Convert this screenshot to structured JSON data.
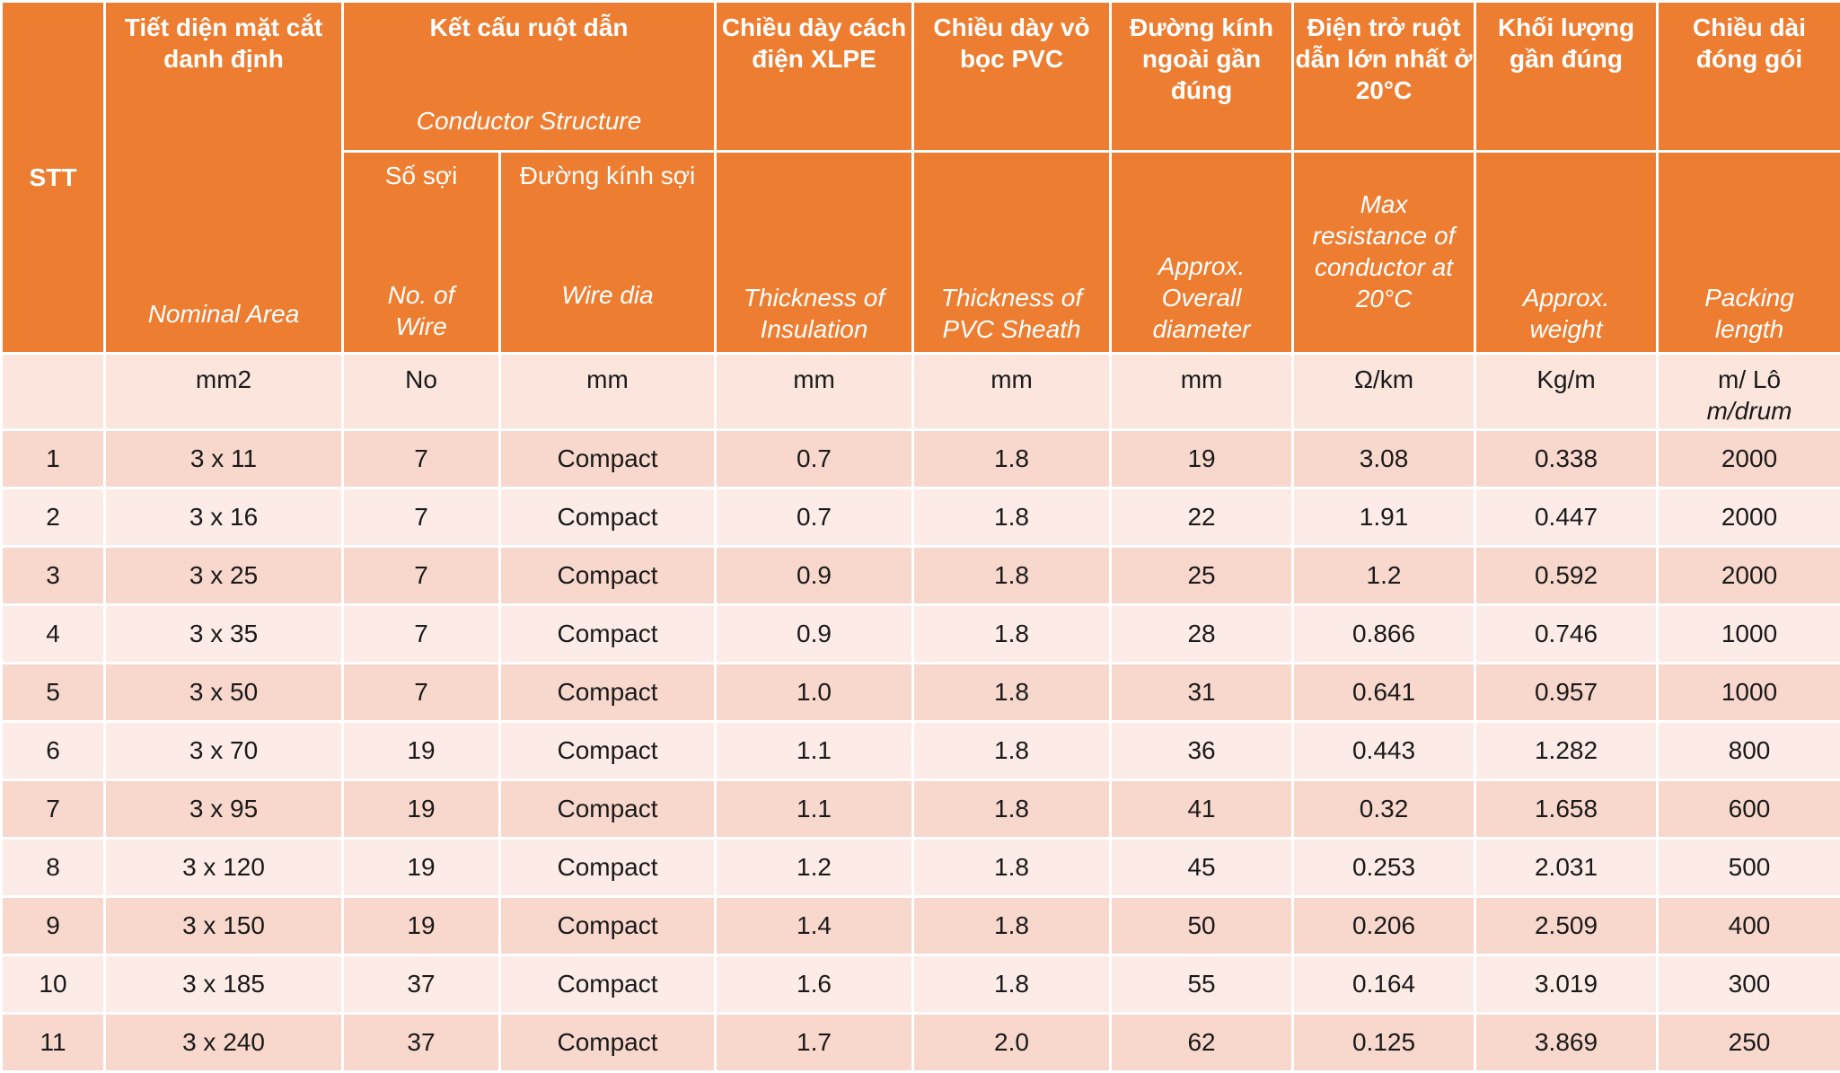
{
  "header": {
    "stt": "STT",
    "nominal_area": {
      "vn": "Tiết diện mặt cắt danh định",
      "en": "Nominal Area"
    },
    "conductor": {
      "vn": "Kết cấu ruột dẫn",
      "en": "Conductor Structure",
      "num_wire": {
        "vn": "Số sợi",
        "en": "No. of Wire"
      },
      "wire_dia": {
        "vn": "Đường kính sợi",
        "en": "Wire dia"
      }
    },
    "insulation": {
      "vn": "Chiều dày cách điện XLPE",
      "en": "Thickness of Insulation"
    },
    "sheath": {
      "vn": "Chiều dày vỏ bọc PVC",
      "en": "Thickness of PVC Sheath"
    },
    "diameter": {
      "vn": "Đường kính ngoài gần đúng",
      "en": "Approx. Overall diameter"
    },
    "resistance": {
      "vn": "Điện trở ruột dẫn lớn nhất ở 20°C",
      "en": "Max resistance of conductor at 20°C"
    },
    "weight": {
      "vn": "Khối lượng gần đúng",
      "en": "Approx. weight"
    },
    "packing": {
      "vn": "Chiều dài đóng gói",
      "en": "Packing length"
    }
  },
  "units": {
    "stt": "",
    "area": "mm2",
    "num_wire": "No",
    "wire_dia": "mm",
    "insulation": "mm",
    "sheath": "mm",
    "diameter": "mm",
    "resistance": "Ω/km",
    "weight": "Kg/m",
    "packing_vn": "m/ Lô",
    "packing_en": "m/drum"
  },
  "rows": [
    [
      "1",
      "3 x 11",
      "7",
      "Compact",
      "0.7",
      "1.8",
      "19",
      "3.08",
      "0.338",
      "2000"
    ],
    [
      "2",
      "3 x 16",
      "7",
      "Compact",
      "0.7",
      "1.8",
      "22",
      "1.91",
      "0.447",
      "2000"
    ],
    [
      "3",
      "3 x 25",
      "7",
      "Compact",
      "0.9",
      "1.8",
      "25",
      "1.2",
      "0.592",
      "2000"
    ],
    [
      "4",
      "3 x 35",
      "7",
      "Compact",
      "0.9",
      "1.8",
      "28",
      "0.866",
      "0.746",
      "1000"
    ],
    [
      "5",
      "3 x 50",
      "7",
      "Compact",
      "1.0",
      "1.8",
      "31",
      "0.641",
      "0.957",
      "1000"
    ],
    [
      "6",
      "3 x 70",
      "19",
      "Compact",
      "1.1",
      "1.8",
      "36",
      "0.443",
      "1.282",
      "800"
    ],
    [
      "7",
      "3 x 95",
      "19",
      "Compact",
      "1.1",
      "1.8",
      "41",
      "0.32",
      "1.658",
      "600"
    ],
    [
      "8",
      "3 x 120",
      "19",
      "Compact",
      "1.2",
      "1.8",
      "45",
      "0.253",
      "2.031",
      "500"
    ],
    [
      "9",
      "3 x 150",
      "19",
      "Compact",
      "1.4",
      "1.8",
      "50",
      "0.206",
      "2.509",
      "400"
    ],
    [
      "10",
      "3 x 185",
      "37",
      "Compact",
      "1.6",
      "1.8",
      "55",
      "0.164",
      "3.019",
      "300"
    ],
    [
      "11",
      "3 x 240",
      "37",
      "Compact",
      "1.7",
      "2.0",
      "62",
      "0.125",
      "3.869",
      "250"
    ]
  ]
}
